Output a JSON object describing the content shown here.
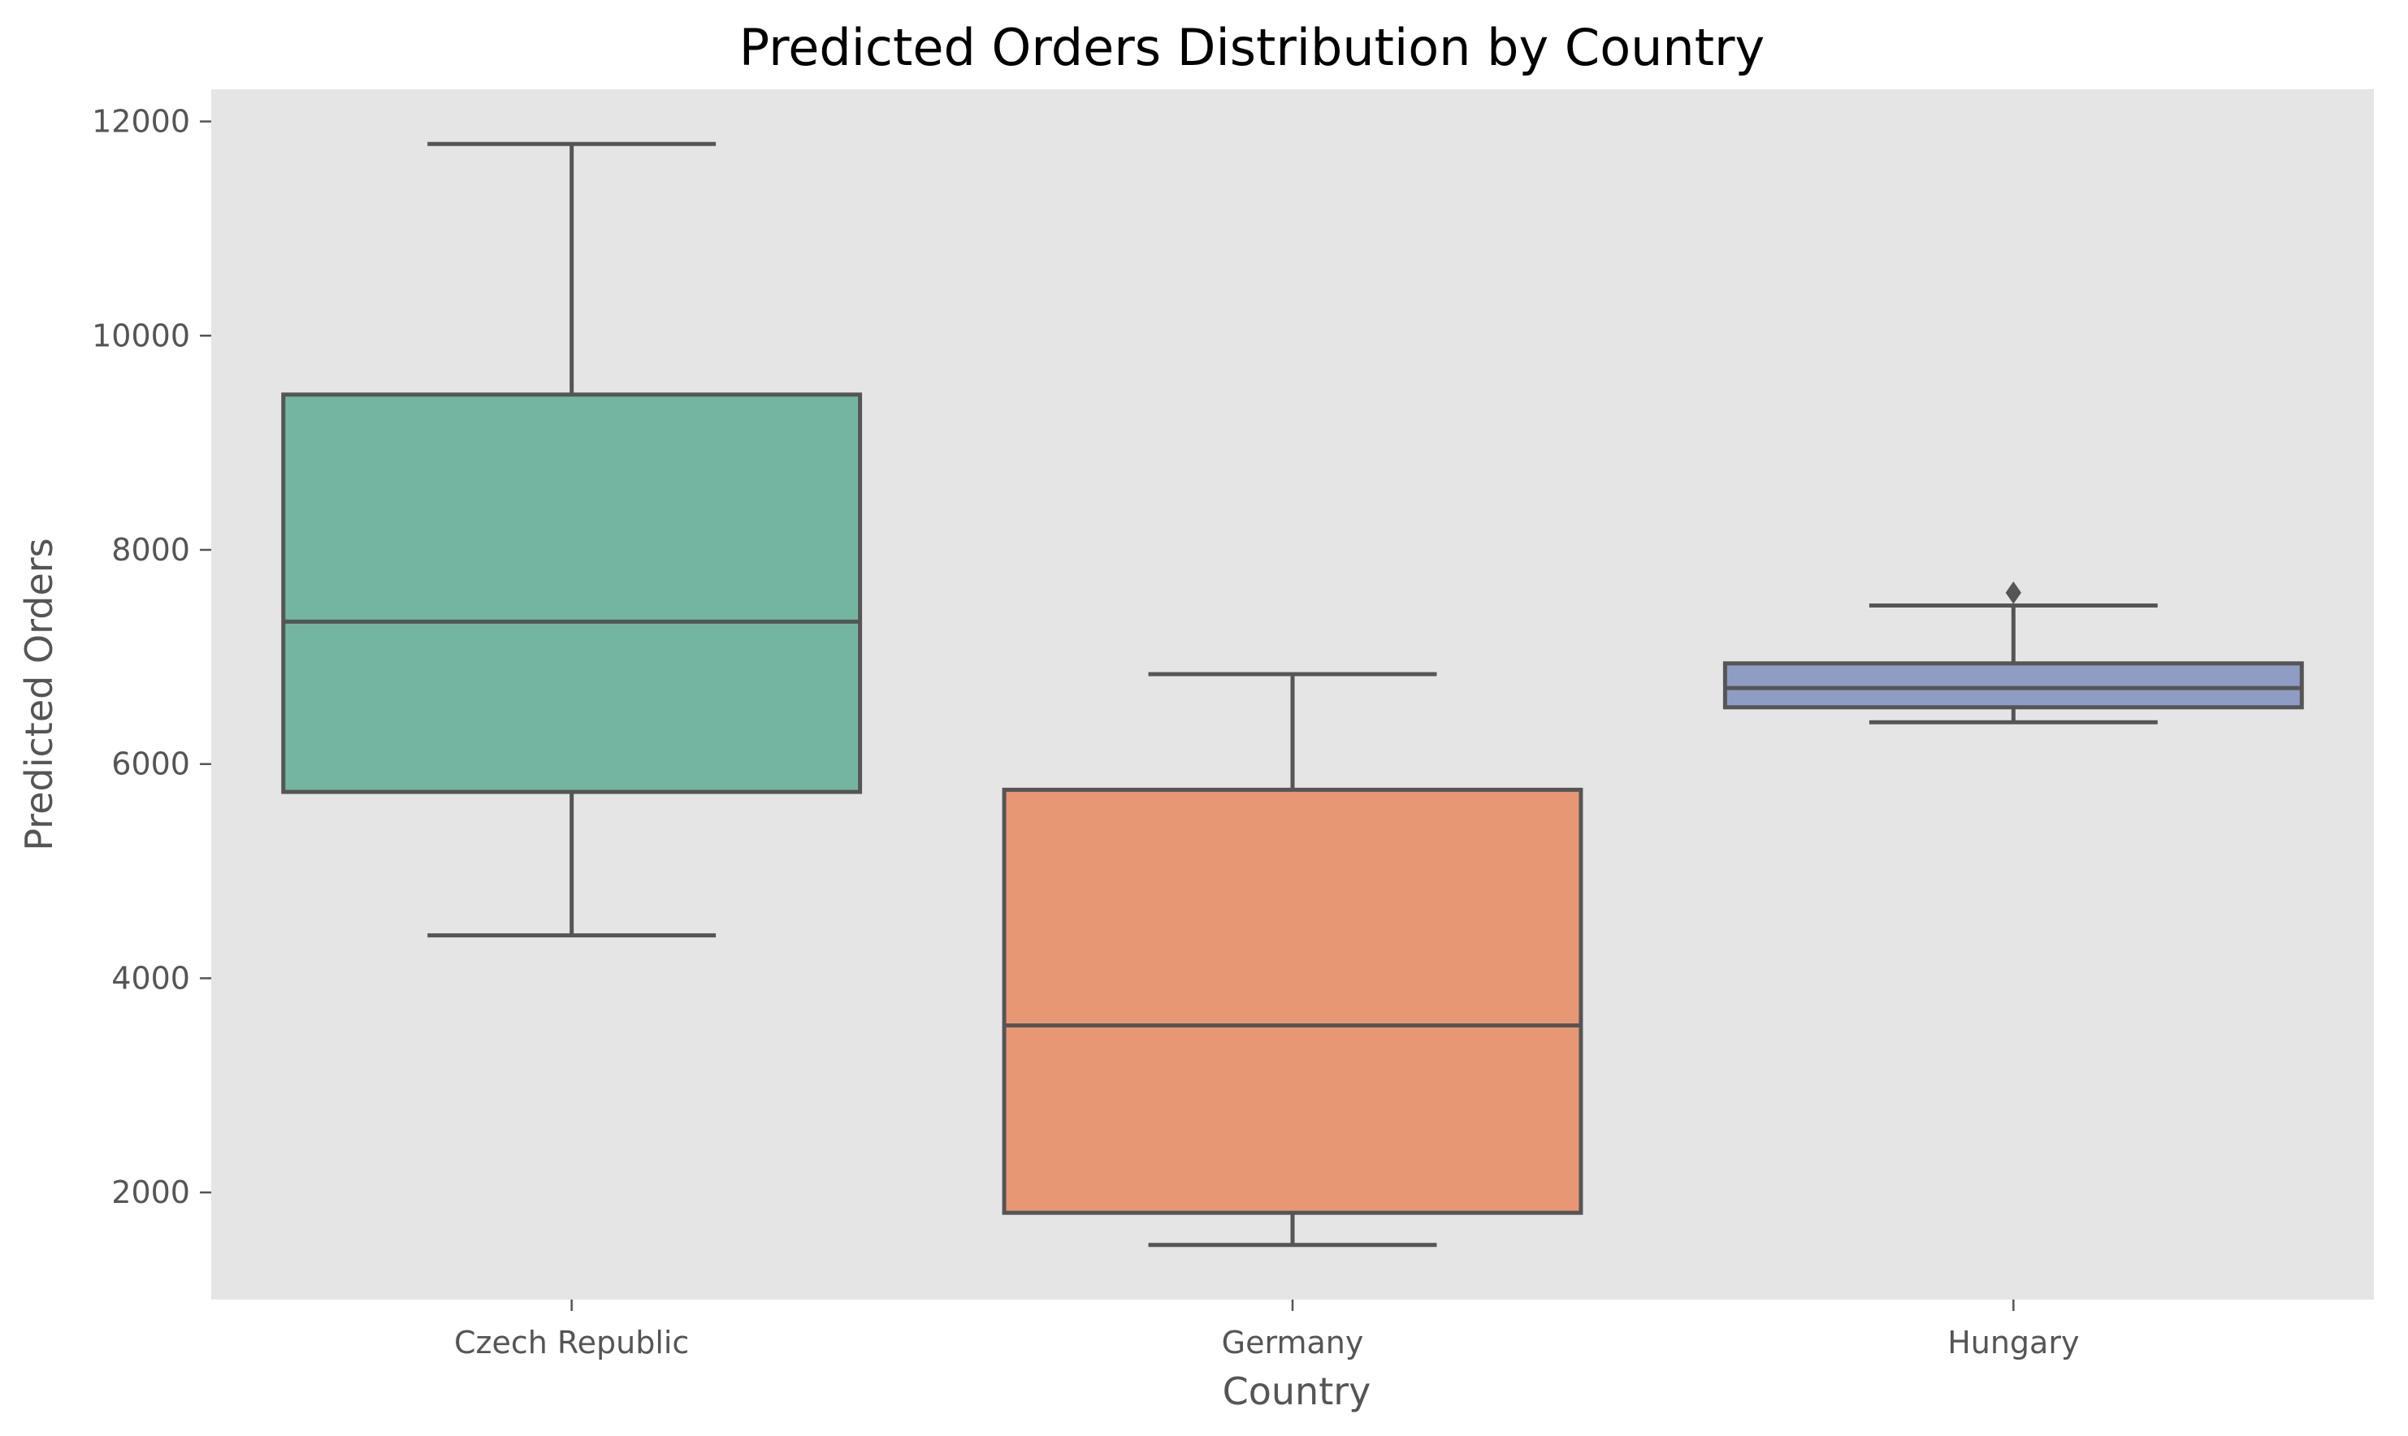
{
  "chart_data": {
    "type": "box",
    "title": "Predicted Orders Distribution by Country",
    "xlabel": "Country",
    "ylabel": "Predicted Orders",
    "ylim": [
      1000,
      12300
    ],
    "yticks": [
      2000,
      4000,
      6000,
      8000,
      10000,
      12000
    ],
    "grid": false,
    "background": "#e5e5e5",
    "categories": [
      "Czech Republic",
      "Germany",
      "Hungary"
    ],
    "boxes": [
      {
        "category": "Czech Republic",
        "whisker_low": 4400,
        "q1": 5740,
        "median": 7330,
        "q3": 9450,
        "whisker_high": 11790,
        "outliers": [],
        "color": "#74b5a1"
      },
      {
        "category": "Germany",
        "whisker_low": 1510,
        "q1": 1810,
        "median": 3560,
        "q3": 5760,
        "whisker_high": 6840,
        "outliers": [],
        "color": "#e89775"
      },
      {
        "category": "Hungary",
        "whisker_low": 6390,
        "q1": 6530,
        "median": 6710,
        "q3": 6940,
        "whisker_high": 7480,
        "outliers": [
          7600
        ],
        "color": "#8f9dc4"
      }
    ],
    "line_color": "#555555"
  }
}
